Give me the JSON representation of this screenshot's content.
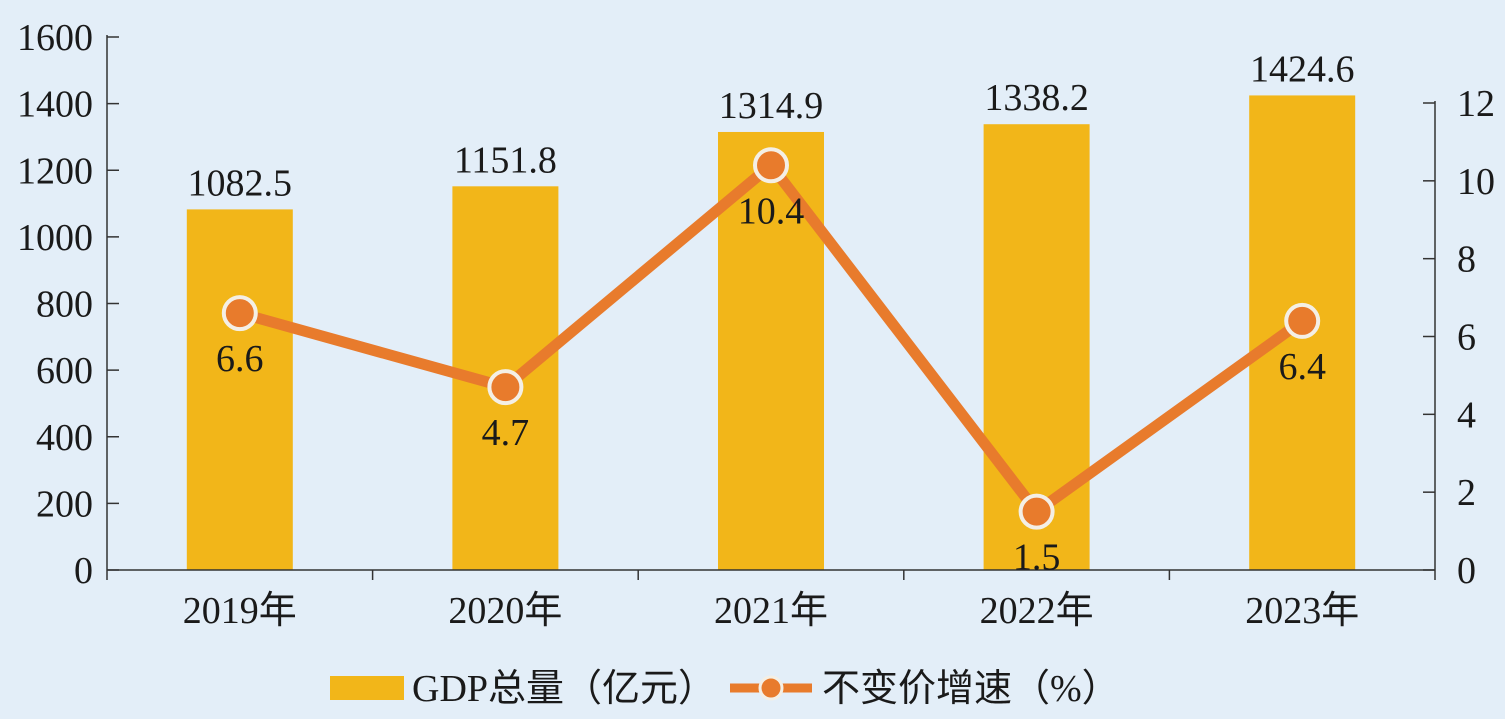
{
  "colors": {
    "background": "#e3eef8",
    "bar": "#f2b619",
    "line": "#e87b2c",
    "marker_stroke": "#f4efe5",
    "axis": "#333333",
    "text": "#1a1a1a"
  },
  "chart_data": {
    "type": "bar",
    "categories": [
      "2019年",
      "2020年",
      "2021年",
      "2022年",
      "2023年"
    ],
    "series": [
      {
        "name": "GDP总量（亿元）",
        "type": "bar",
        "axis": "left",
        "values": [
          1082.5,
          1151.8,
          1314.9,
          1338.2,
          1424.6
        ],
        "labels": [
          "1082.5",
          "1151.8",
          "1314.9",
          "1338.2",
          "1424.6"
        ]
      },
      {
        "name": "不变价增速（%）",
        "type": "line",
        "axis": "right",
        "values": [
          6.6,
          4.7,
          10.4,
          1.5,
          6.4
        ],
        "labels": [
          "6.6",
          "4.7",
          "10.4",
          "1.5",
          "6.4"
        ]
      }
    ],
    "y_left": {
      "ylim": [
        0,
        1600
      ],
      "ticks": [
        0,
        200,
        400,
        600,
        800,
        1000,
        1200,
        1400,
        1600
      ]
    },
    "y_right": {
      "ylim": [
        0,
        12
      ],
      "ticks": [
        0,
        2,
        4,
        6,
        8,
        10,
        12
      ]
    },
    "legend": {
      "position": "bottom",
      "items": [
        "GDP总量（亿元）",
        "不变价增速（%）"
      ]
    },
    "grid": false
  }
}
